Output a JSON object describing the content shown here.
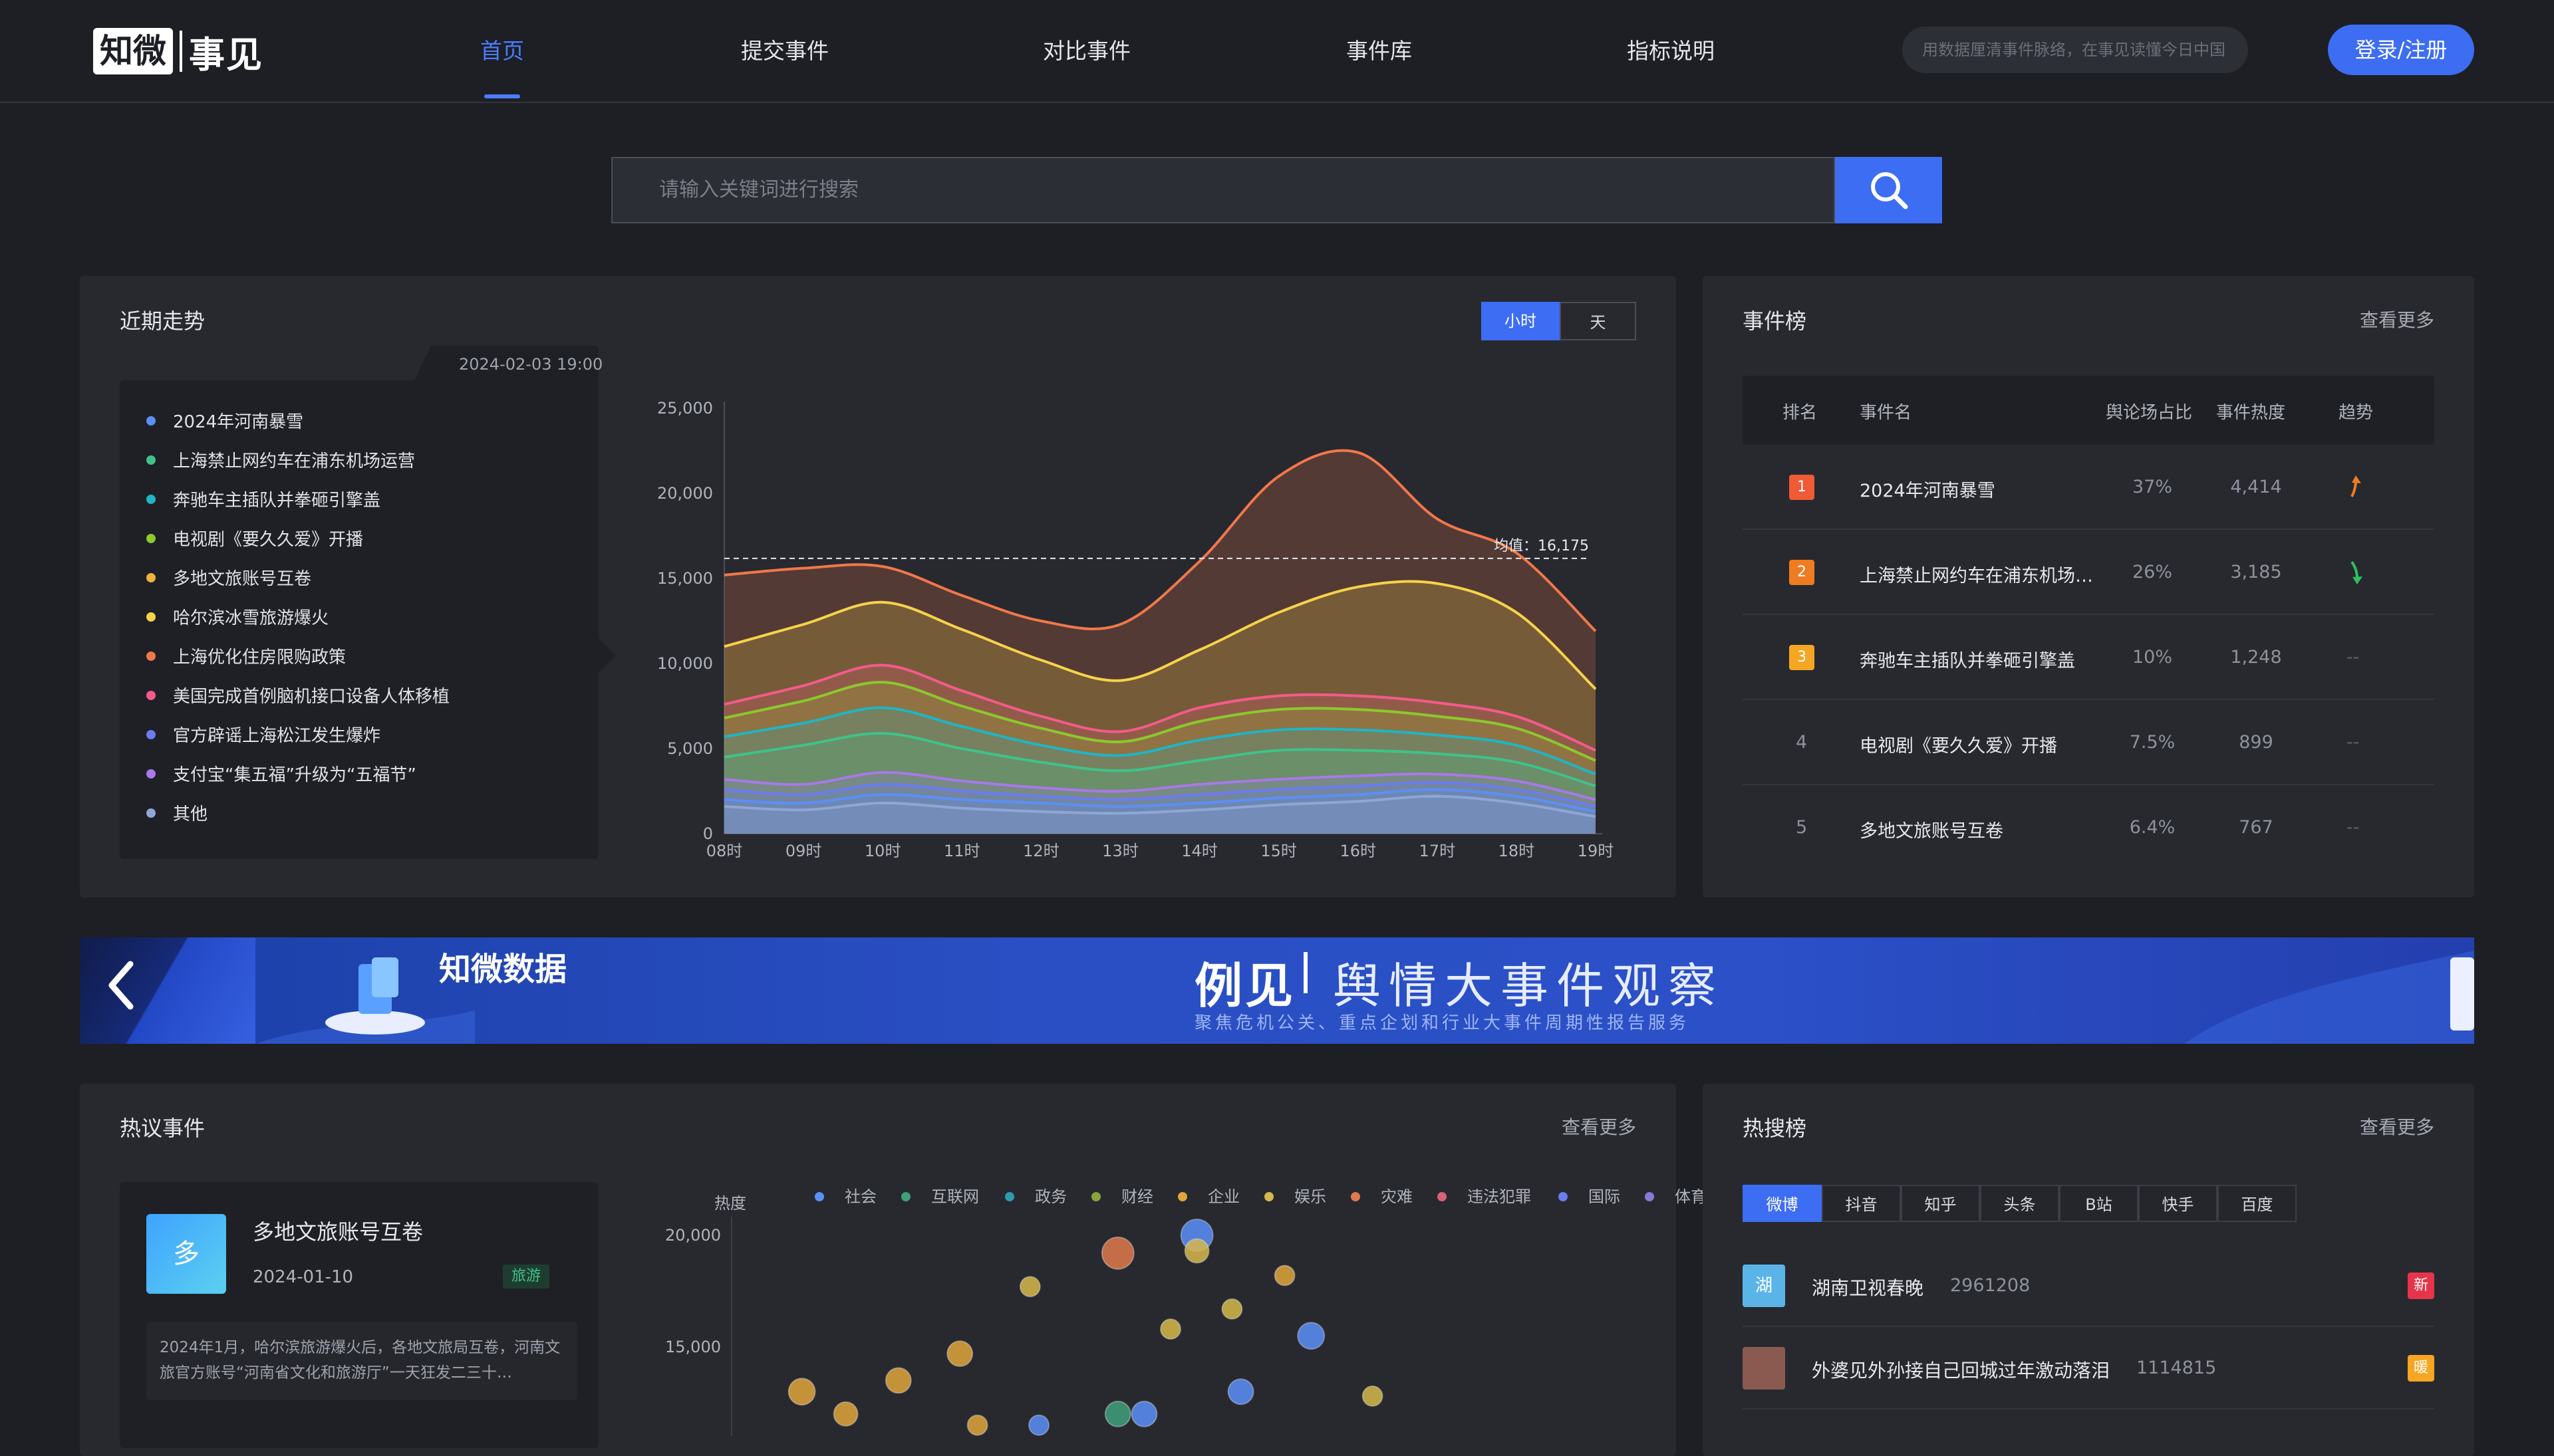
{
  "header": {
    "logo_left": "知微",
    "logo_right": "事见",
    "nav": [
      "首页",
      "提交事件",
      "对比事件",
      "事件库",
      "指标说明"
    ],
    "search_placeholder": "用数据厘清事件脉络，在事见读懂今日中国",
    "login_label": "登录/注册"
  },
  "main_search": {
    "placeholder": "请输入关键词进行搜索"
  },
  "trend": {
    "title": "近期走势",
    "toggle": [
      "小时",
      "天"
    ],
    "timestamp": "2024-02-03 19:00",
    "mean_label": "均值：16,175",
    "legend": [
      {
        "name": "2024年河南暴雪",
        "color": "#5b8ff9"
      },
      {
        "name": "上海禁止网约车在浦东机场运营",
        "color": "#3fc28a"
      },
      {
        "name": "奔驰车主插队并拳砸引擎盖",
        "color": "#1fb5c4"
      },
      {
        "name": "电视剧《要久久爱》开播",
        "color": "#8bc92d"
      },
      {
        "name": "多地文旅账号互卷",
        "color": "#f2b13b"
      },
      {
        "name": "哈尔滨冰雪旅游爆火",
        "color": "#f6d24a"
      },
      {
        "name": "上海优化住房限购政策",
        "color": "#f2774b"
      },
      {
        "name": "美国完成首例脑机接口设备人体移植",
        "color": "#f45b8a"
      },
      {
        "name": "官方辟谣上海松江发生爆炸",
        "color": "#6a7cf2"
      },
      {
        "name": "支付宝“集五福”升级为“五福节”",
        "color": "#a779e9"
      },
      {
        "name": "其他",
        "color": "#8fa6d6"
      }
    ]
  },
  "chart_data": [
    {
      "type": "area",
      "x": [
        "08时",
        "09时",
        "10时",
        "11时",
        "12时",
        "13时",
        "14时",
        "15时",
        "16时",
        "17时",
        "18时",
        "19时"
      ],
      "ylim": [
        0,
        25000
      ],
      "yticks": [
        "0",
        "5,000",
        "10,000",
        "15,000",
        "20,000",
        "25,000"
      ],
      "mean": 16175,
      "series": [
        {
          "name": "其他",
          "values": [
            1600,
            1400,
            1800,
            1500,
            1300,
            1200,
            1400,
            1700,
            1900,
            2200,
            1800,
            1000
          ]
        },
        {
          "name": "2024年河南暴雪",
          "values": [
            2000,
            1800,
            2300,
            2000,
            1800,
            1600,
            1800,
            2100,
            2300,
            2600,
            2200,
            1300
          ]
        },
        {
          "name": "官方辟谣上海松江发生爆炸",
          "values": [
            2600,
            2300,
            2900,
            2500,
            2200,
            2000,
            2300,
            2600,
            2800,
            3000,
            2600,
            1600
          ]
        },
        {
          "name": "支付宝“集五福”升级为“五福节”",
          "values": [
            3200,
            2900,
            3600,
            3100,
            2700,
            2500,
            2900,
            3200,
            3400,
            3500,
            3100,
            2000
          ]
        },
        {
          "name": "上海禁止网约车在浦东机场运营",
          "values": [
            4500,
            5200,
            5900,
            5000,
            4200,
            3700,
            4300,
            4900,
            4900,
            4700,
            4200,
            2800
          ]
        },
        {
          "name": "奔驰车主插队并拳砸引擎盖",
          "values": [
            5700,
            6500,
            7400,
            6300,
            5200,
            4600,
            5500,
            6100,
            6100,
            5800,
            5200,
            3500
          ]
        },
        {
          "name": "电视剧《要久久爱》开播",
          "values": [
            6800,
            7800,
            8900,
            7500,
            6200,
            5400,
            6600,
            7300,
            7300,
            6900,
            6200,
            4300
          ]
        },
        {
          "name": "美国完成首例脑机接口设备人体移植",
          "values": [
            7600,
            8700,
            9900,
            8400,
            6900,
            6000,
            7400,
            8100,
            8100,
            7700,
            6900,
            4900
          ]
        },
        {
          "name": "哈尔滨冰雪旅游爆火",
          "values": [
            11000,
            12300,
            13600,
            12000,
            10200,
            9000,
            10800,
            13000,
            14500,
            14700,
            13000,
            8500
          ]
        },
        {
          "name": "上海优化住房限购政策",
          "values": [
            15200,
            15600,
            15700,
            14000,
            12500,
            12300,
            16000,
            21000,
            22400,
            18500,
            16500,
            11900
          ]
        }
      ]
    },
    {
      "type": "scatter",
      "ylabel": "热度",
      "yticks": [
        "15,000",
        "20,000"
      ],
      "legend": [
        {
          "name": "社会",
          "color": "#5b8ff9"
        },
        {
          "name": "互联网",
          "color": "#3fa07a"
        },
        {
          "name": "政务",
          "color": "#2a9bb0"
        },
        {
          "name": "财经",
          "color": "#8aa33a"
        },
        {
          "name": "企业",
          "color": "#e0a53b"
        },
        {
          "name": "娱乐",
          "color": "#d6b84a"
        },
        {
          "name": "灾难",
          "color": "#e0794b"
        },
        {
          "name": "违法犯罪",
          "color": "#d8607a"
        },
        {
          "name": "国际",
          "color": "#6a7cf2"
        },
        {
          "name": "体育",
          "color": "#8a78d4"
        }
      ],
      "points": [
        {
          "x": 0.08,
          "y": 13000,
          "r": 20,
          "color": "#e0a53b"
        },
        {
          "x": 0.13,
          "y": 12000,
          "r": 18,
          "color": "#e0a53b"
        },
        {
          "x": 0.19,
          "y": 13500,
          "r": 19,
          "color": "#e0a53b"
        },
        {
          "x": 0.26,
          "y": 14700,
          "r": 19,
          "color": "#e0a53b"
        },
        {
          "x": 0.34,
          "y": 17700,
          "r": 15,
          "color": "#d6b84a"
        },
        {
          "x": 0.44,
          "y": 19200,
          "r": 24,
          "color": "#e0794b"
        },
        {
          "x": 0.5,
          "y": 15800,
          "r": 15,
          "color": "#d6b84a"
        },
        {
          "x": 0.53,
          "y": 20000,
          "r": 24,
          "color": "#5b8ff9"
        },
        {
          "x": 0.53,
          "y": 19300,
          "r": 18,
          "color": "#d6b84a"
        },
        {
          "x": 0.57,
          "y": 16700,
          "r": 15,
          "color": "#d6b84a"
        },
        {
          "x": 0.63,
          "y": 18200,
          "r": 15,
          "color": "#e0a53b"
        },
        {
          "x": 0.66,
          "y": 15500,
          "r": 20,
          "color": "#5b8ff9"
        },
        {
          "x": 0.58,
          "y": 13000,
          "r": 19,
          "color": "#5b8ff9"
        },
        {
          "x": 0.47,
          "y": 12000,
          "r": 19,
          "color": "#5b8ff9"
        },
        {
          "x": 0.44,
          "y": 12000,
          "r": 19,
          "color": "#3fa07a"
        },
        {
          "x": 0.73,
          "y": 12800,
          "r": 15,
          "color": "#d6b84a"
        },
        {
          "x": 0.35,
          "y": 11500,
          "r": 15,
          "color": "#5b8ff9"
        },
        {
          "x": 0.28,
          "y": 11500,
          "r": 15,
          "color": "#e0a53b"
        }
      ]
    }
  ],
  "ranking": {
    "title": "事件榜",
    "more": "查看更多",
    "headers": [
      "排名",
      "事件名",
      "舆论场占比",
      "事件热度",
      "趋势"
    ],
    "rows": [
      {
        "rank": "1",
        "name": "2024年河南暴雪",
        "share": "37%",
        "heat": "4,414",
        "trend": "up",
        "badge_color": "#f15a36"
      },
      {
        "rank": "2",
        "name": "上海禁止网约车在浦东机场…",
        "share": "26%",
        "heat": "3,185",
        "trend": "down",
        "badge_color": "#f07c22"
      },
      {
        "rank": "3",
        "name": "奔驰车主插队并拳砸引擎盖",
        "share": "10%",
        "heat": "1,248",
        "trend": "--",
        "badge_color": "#f5a623"
      },
      {
        "rank": "4",
        "name": "电视剧《要久久爱》开播",
        "share": "7.5%",
        "heat": "899",
        "trend": "--",
        "badge_color": ""
      },
      {
        "rank": "5",
        "name": "多地文旅账号互卷",
        "share": "6.4%",
        "heat": "767",
        "trend": "--",
        "badge_color": ""
      }
    ]
  },
  "banner": {
    "brand": "知微数据",
    "headline_left": "例见",
    "headline_right": "舆情大事件观察",
    "subline": "聚焦危机公关、重点企划和行业大事件周期性报告服务"
  },
  "hot_events": {
    "title": "热议事件",
    "more": "查看更多",
    "card": {
      "thumb_char": "多",
      "name": "多地文旅账号互卷",
      "date": "2024-01-10",
      "tag": "旅游",
      "summary": "2024年1月，哈尔滨旅游爆火后，各地文旅局互卷，河南文旅官方账号“河南省文化和旅游厅”一天狂发二三十…"
    }
  },
  "hot_search": {
    "title": "热搜榜",
    "more": "查看更多",
    "tabs": [
      "微博",
      "抖音",
      "知乎",
      "头条",
      "B站",
      "快手",
      "百度"
    ],
    "items": [
      {
        "thumb_char": "湖",
        "name": "湖南卫视春晚",
        "count": "2961208",
        "tag": "新",
        "tag_color": "#e8344a"
      },
      {
        "thumb_char": "",
        "name": "外婆见外孙接自己回城过年激动落泪",
        "count": "1114815",
        "tag": "暖",
        "tag_color": "#f5a623"
      }
    ]
  }
}
